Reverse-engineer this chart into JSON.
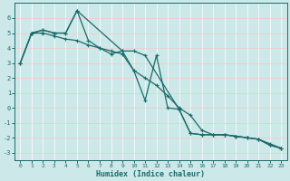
{
  "xlabel": "Humidex (Indice chaleur)",
  "ylabel": "",
  "bg_color": "#cde8e8",
  "line_color": "#1a6b6b",
  "grid_color_v": "#ffffff",
  "grid_color_h": "#f5c8c8",
  "xlim": [
    -0.5,
    23.5
  ],
  "ylim": [
    -3.5,
    7.0
  ],
  "yticks": [
    -3,
    -2,
    -1,
    0,
    1,
    2,
    3,
    4,
    5,
    6
  ],
  "xticks": [
    0,
    1,
    2,
    3,
    4,
    5,
    6,
    7,
    8,
    9,
    10,
    11,
    12,
    13,
    14,
    15,
    16,
    17,
    18,
    19,
    20,
    21,
    22,
    23
  ],
  "series1_x": [
    0,
    1,
    2,
    3,
    4,
    5,
    6,
    7,
    8,
    9,
    10,
    11,
    12,
    13,
    14,
    15,
    16,
    17,
    18,
    19,
    20,
    21,
    22,
    23
  ],
  "series1_y": [
    3.0,
    5.0,
    5.2,
    5.0,
    5.0,
    6.5,
    4.5,
    4.0,
    3.6,
    3.8,
    2.5,
    0.5,
    3.5,
    0.0,
    -0.1,
    -1.7,
    -1.8,
    -1.8,
    -1.8,
    -1.9,
    -2.0,
    -2.1,
    -2.5,
    -2.7
  ],
  "series2_x": [
    0,
    1,
    2,
    3,
    4,
    5,
    6,
    7,
    8,
    9,
    10,
    11,
    12,
    13,
    14,
    15,
    16,
    17,
    18,
    19,
    20,
    21,
    22,
    23
  ],
  "series2_y": [
    3.0,
    5.0,
    5.0,
    4.8,
    4.6,
    4.5,
    4.2,
    4.0,
    3.8,
    3.6,
    2.5,
    2.0,
    1.5,
    0.8,
    0.0,
    -0.5,
    -1.5,
    -1.8,
    -1.8,
    -1.9,
    -2.0,
    -2.1,
    -2.4,
    -2.7
  ],
  "series3_x": [
    0,
    1,
    2,
    3,
    4,
    5,
    9,
    10,
    11,
    14,
    15,
    16,
    17,
    18,
    19,
    20,
    21,
    22,
    23
  ],
  "series3_y": [
    3.0,
    5.0,
    5.2,
    5.0,
    5.0,
    6.5,
    3.8,
    3.8,
    3.5,
    -0.1,
    -1.7,
    -1.8,
    -1.8,
    -1.8,
    -1.9,
    -2.0,
    -2.1,
    -2.5,
    -2.7
  ],
  "marker_size": 2.5,
  "linewidth": 0.9
}
